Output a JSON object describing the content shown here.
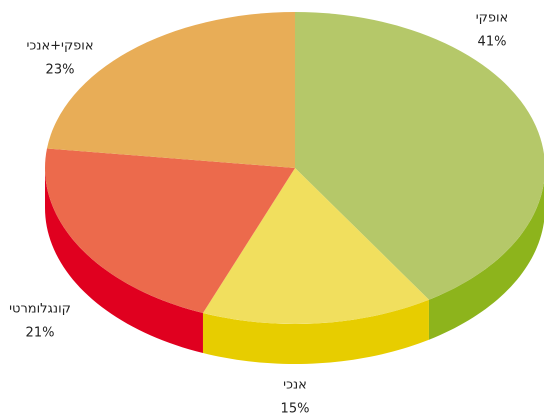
{
  "chart_data": {
    "type": "pie3d",
    "categories": [
      "אופקי",
      "אנכי",
      "קונגלומרטי",
      "אופקי+אנכי"
    ],
    "values": [
      41,
      15,
      21,
      23
    ],
    "value_labels": [
      "41%",
      "15%",
      "21%",
      "23%"
    ],
    "colors": [
      "#b5c869",
      "#f1df5e",
      "#ec6a4c",
      "#e8ad57"
    ],
    "side_colors": [
      "#8db41c",
      "#e7cd00",
      "#e0001f",
      "#d08a2a"
    ]
  }
}
